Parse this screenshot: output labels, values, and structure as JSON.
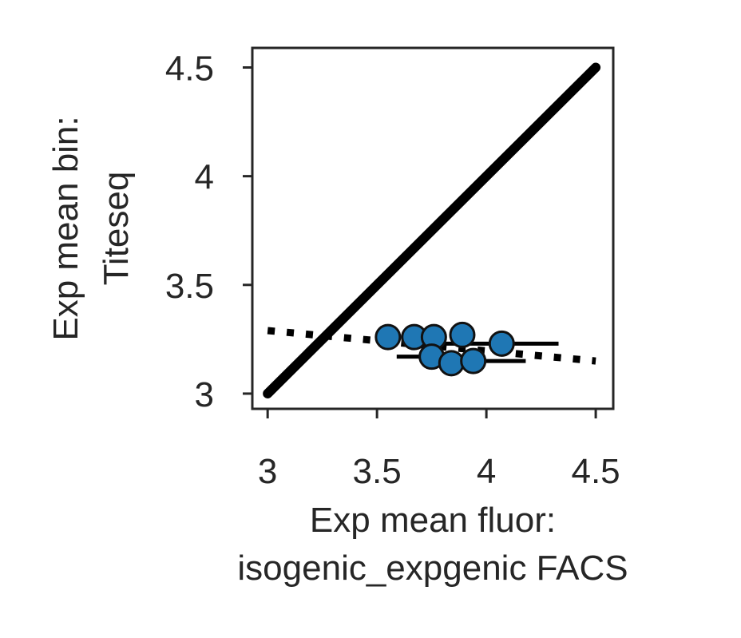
{
  "chart_data": {
    "type": "scatter",
    "xlabel": [
      "Exp mean fluor:",
      "isogenic_expgenic FACS"
    ],
    "ylabel": [
      "Exp mean bin:",
      "Titeseq"
    ],
    "xlim": [
      2.93,
      4.58
    ],
    "ylim": [
      2.93,
      4.59
    ],
    "x_ticks": [
      3,
      3.5,
      4,
      4.5
    ],
    "y_ticks": [
      3,
      3.5,
      4,
      4.5
    ],
    "x_tick_labels": [
      "3",
      "3.5",
      "4",
      "4.5"
    ],
    "y_tick_labels": [
      "3",
      "3.5",
      "4",
      "4.5"
    ],
    "grid": false,
    "marker_color": "#1f77b4",
    "line_color": "#000000",
    "identity_line": {
      "style": "solid",
      "from": [
        3.0,
        3.0
      ],
      "to": [
        4.5,
        4.5
      ]
    },
    "fit_line": {
      "style": "dotted",
      "from": [
        3.0,
        3.29
      ],
      "to": [
        4.5,
        3.15
      ]
    },
    "points": [
      {
        "x": 3.55,
        "y": 3.26,
        "xerr": 0.03,
        "yerr": 0.0
      },
      {
        "x": 3.67,
        "y": 3.26,
        "xerr": 0.06,
        "yerr": 0.0
      },
      {
        "x": 3.76,
        "y": 3.26,
        "xerr": 0.05,
        "yerr": 0.0
      },
      {
        "x": 3.89,
        "y": 3.27,
        "xerr": 0.04,
        "yerr": 0.02
      },
      {
        "x": 3.75,
        "y": 3.17,
        "xerr": 0.16,
        "yerr": 0.0
      },
      {
        "x": 3.84,
        "y": 3.14,
        "xerr": 0.08,
        "yerr": 0.0
      },
      {
        "x": 3.94,
        "y": 3.15,
        "xerr": 0.24,
        "yerr": 0.0
      },
      {
        "x": 4.07,
        "y": 3.23,
        "xerr": 0.26,
        "yerr": 0.0
      }
    ]
  }
}
